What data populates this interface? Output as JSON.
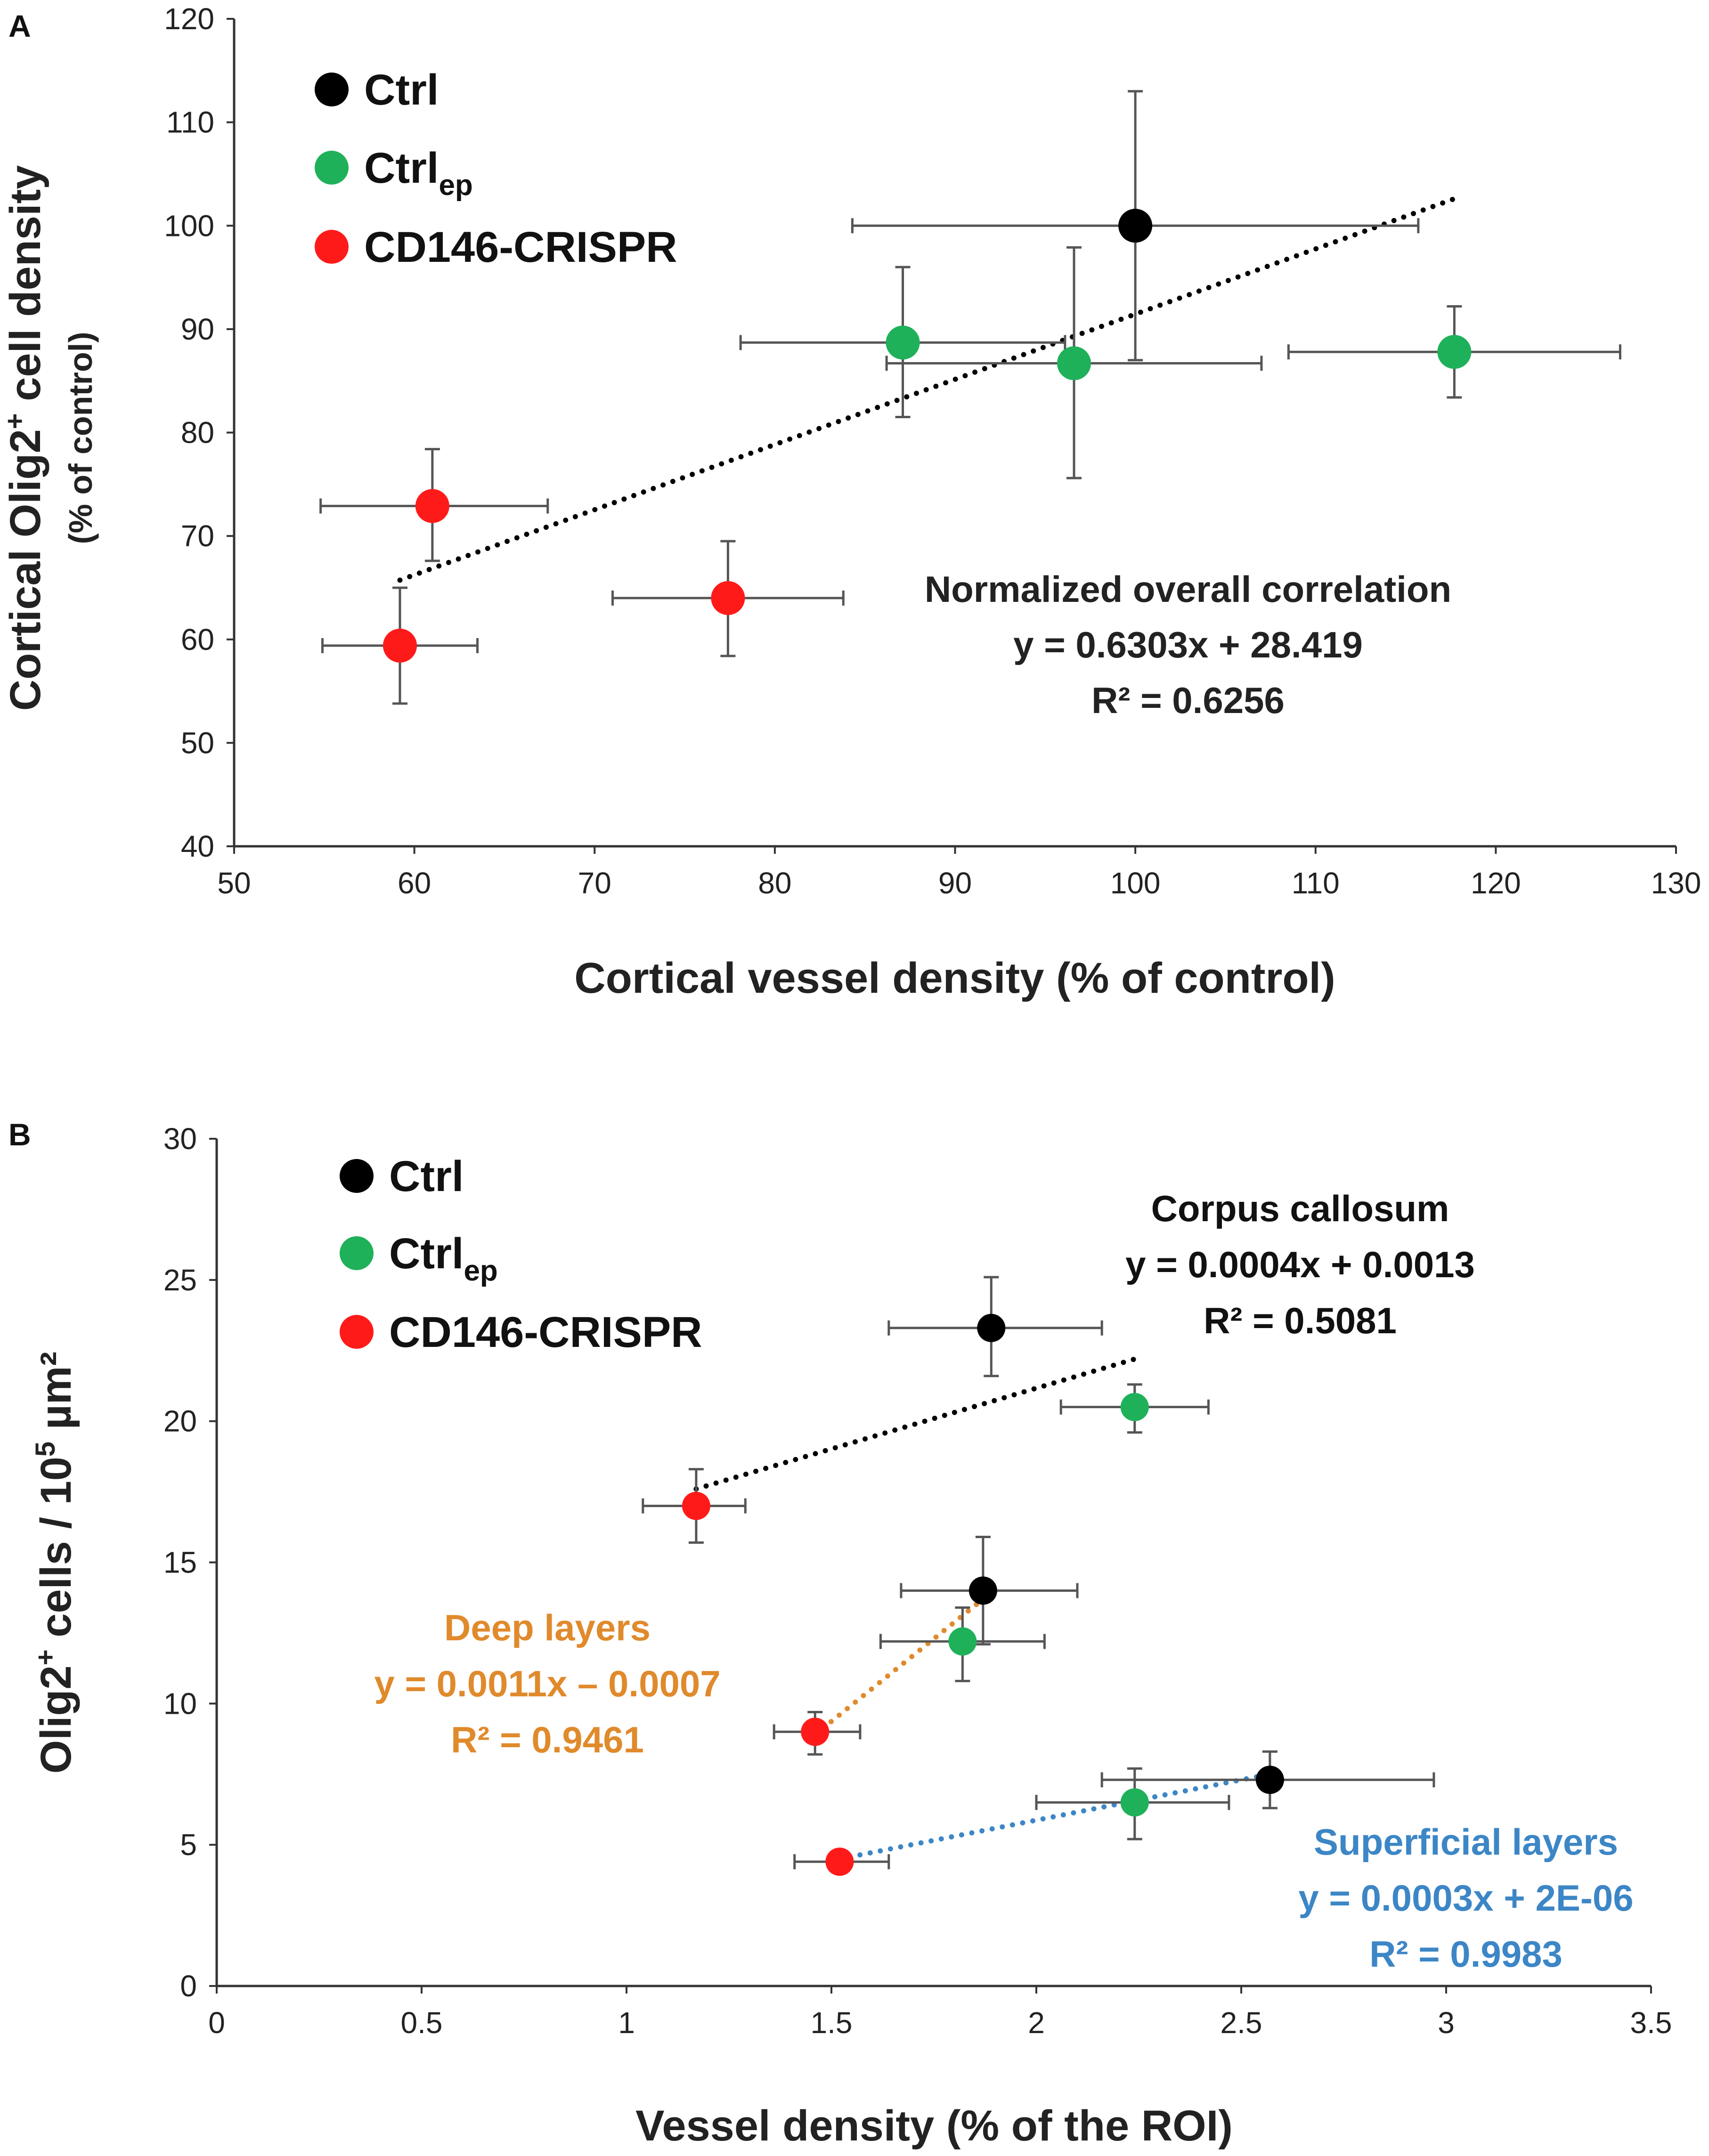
{
  "colors": {
    "ctrl": "#000000",
    "ctrl_ep": "#1fb15a",
    "cd146": "#ff1a1a",
    "error_bar": "#555555",
    "deep": "#e08a2c",
    "superficial": "#3c86c6"
  },
  "chart_data": [
    {
      "panel": "A",
      "type": "scatter",
      "xlabel": "Cortical vessel density (% of control)",
      "ylabel_main": "Cortical Olig2",
      "ylabel_sup": "+",
      "ylabel_rest": " cell density",
      "ylabel_sub": "(% of control)",
      "xlim": [
        50,
        130
      ],
      "ylim": [
        40,
        120
      ],
      "xticks": [
        50,
        60,
        70,
        80,
        90,
        100,
        110,
        120,
        130
      ],
      "yticks": [
        40,
        50,
        60,
        70,
        80,
        90,
        100,
        110,
        120
      ],
      "legend": {
        "position": "top-left",
        "entries": [
          {
            "key": "ctrl",
            "base": "Ctrl",
            "sub": ""
          },
          {
            "key": "ctrl_ep",
            "base": "Ctrl",
            "sub": "ep"
          },
          {
            "key": "cd146",
            "base": "CD146-CRISPR",
            "sub": ""
          }
        ]
      },
      "series": [
        {
          "key": "ctrl",
          "name": "Ctrl",
          "points": [
            {
              "x": 100,
              "y": 100,
              "xerr": [
                84.3,
                115.7
              ],
              "yerr": [
                87,
                113
              ]
            }
          ]
        },
        {
          "key": "ctrl_ep",
          "name": "Ctrl ep",
          "points": [
            {
              "x": 87.1,
              "y": 88.7,
              "xerr": [
                78.1,
                96.1
              ],
              "yerr": [
                81.5,
                96
              ]
            },
            {
              "x": 96.6,
              "y": 86.7,
              "xerr": [
                86.2,
                107
              ],
              "yerr": [
                75.6,
                97.9
              ]
            },
            {
              "x": 117.7,
              "y": 87.8,
              "xerr": [
                108.5,
                126.9
              ],
              "yerr": [
                83.4,
                92.2
              ]
            }
          ]
        },
        {
          "key": "cd146",
          "name": "CD146-CRISPR",
          "points": [
            {
              "x": 61,
              "y": 72.9,
              "xerr": [
                54.8,
                67.4
              ],
              "yerr": [
                67.6,
                78.4
              ]
            },
            {
              "x": 77.4,
              "y": 64,
              "xerr": [
                71,
                83.8
              ],
              "yerr": [
                58.4,
                69.5
              ]
            },
            {
              "x": 59.2,
              "y": 59.4,
              "xerr": [
                54.9,
                63.5
              ],
              "yerr": [
                53.8,
                65
              ]
            }
          ]
        }
      ],
      "trendlines": [
        {
          "key": "overall",
          "color_key": "ctrl",
          "x_range": [
            59.2,
            117.7
          ],
          "slope": 0.6303,
          "intercept": 28.419,
          "title": "Normalized overall correlation",
          "equation": "y = 0.6303x + 28.419",
          "r2": "R² = 0.6256"
        }
      ]
    },
    {
      "panel": "B",
      "type": "scatter",
      "xlabel": "Vessel density (% of the ROI)",
      "ylabel_main": "Olig2",
      "ylabel_sup": "+",
      "ylabel_rest": " cells / 10",
      "ylabel_sup2": "5",
      "ylabel_end": " µm²",
      "xlim": [
        0,
        3.5
      ],
      "ylim": [
        0,
        30
      ],
      "xticks": [
        "0",
        "0.5",
        "1",
        "1.5",
        "2",
        "2.5",
        "3",
        "3.5"
      ],
      "yticks": [
        "0",
        "5",
        "10",
        "15",
        "20",
        "25",
        "30"
      ],
      "legend": {
        "position": "top-left",
        "entries": [
          {
            "key": "ctrl",
            "base": "Ctrl",
            "sub": ""
          },
          {
            "key": "ctrl_ep",
            "base": "Ctrl",
            "sub": "ep"
          },
          {
            "key": "cd146",
            "base": "CD146-CRISPR",
            "sub": ""
          }
        ]
      },
      "series": [
        {
          "key": "ctrl",
          "name": "Ctrl",
          "points": [
            {
              "x": 1.89,
              "y": 23.3,
              "xerr": [
                1.64,
                2.16
              ],
              "yerr": [
                21.6,
                25.1
              ]
            },
            {
              "x": 1.87,
              "y": 14,
              "xerr": [
                1.67,
                2.1
              ],
              "yerr": [
                12.1,
                15.9
              ]
            },
            {
              "x": 2.57,
              "y": 7.3,
              "xerr": [
                2.16,
                2.97
              ],
              "yerr": [
                6.3,
                8.3
              ]
            }
          ]
        },
        {
          "key": "ctrl_ep",
          "name": "Ctrl ep",
          "points": [
            {
              "x": 2.24,
              "y": 20.5,
              "xerr": [
                2.06,
                2.42
              ],
              "yerr": [
                19.6,
                21.3
              ]
            },
            {
              "x": 1.82,
              "y": 12.2,
              "xerr": [
                1.62,
                2.02
              ],
              "yerr": [
                10.8,
                13.4
              ]
            },
            {
              "x": 2.24,
              "y": 6.5,
              "xerr": [
                2,
                2.47
              ],
              "yerr": [
                5.2,
                7.7
              ]
            }
          ]
        },
        {
          "key": "cd146",
          "name": "CD146-CRISPR",
          "points": [
            {
              "x": 1.17,
              "y": 17,
              "xerr": [
                1.04,
                1.29
              ],
              "yerr": [
                15.7,
                18.3
              ]
            },
            {
              "x": 1.46,
              "y": 9,
              "xerr": [
                1.36,
                1.57
              ],
              "yerr": [
                8.2,
                9.7
              ]
            },
            {
              "x": 1.52,
              "y": 4.4,
              "xerr": [
                1.41,
                1.64
              ],
              "yerr": [
                4.1,
                4.7
              ]
            }
          ]
        }
      ],
      "trendlines": [
        {
          "key": "corpus",
          "color_key": "ctrl",
          "from": [
            1.17,
            17.6
          ],
          "to": [
            2.24,
            22.2
          ],
          "title": "Corpus callosum",
          "equation": "y = 0.0004x + 0.0013",
          "r2": "R² = 0.5081"
        },
        {
          "key": "deep",
          "color_key": "deep",
          "from": [
            1.46,
            8.9
          ],
          "to": [
            1.87,
            13.7
          ],
          "title": "Deep layers",
          "equation": "y = 0.0011x – 0.0007",
          "r2": "R² = 0.9461"
        },
        {
          "key": "superficial",
          "color_key": "superficial",
          "from": [
            1.52,
            4.5
          ],
          "to": [
            2.57,
            7.5
          ],
          "title": "Superficial layers",
          "equation": "y = 0.0003x + 2E-06",
          "r2": "R² = 0.9983"
        }
      ]
    }
  ]
}
